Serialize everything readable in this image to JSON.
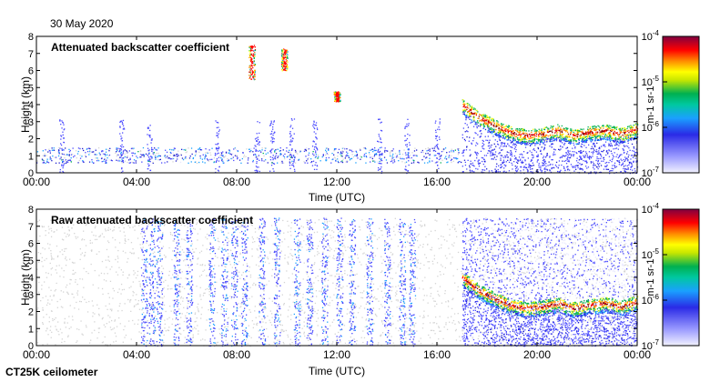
{
  "date": "30 May 2020",
  "instrument": "CT25K ceilometer",
  "colors": {
    "low_signal": "#d4d4d4",
    "scale": [
      "#e6e6ff",
      "#4a4aff",
      "#1f1fd0",
      "#1aa0ff",
      "#00b050",
      "#ffff00",
      "#ff8a00",
      "#ff0000",
      "#800000"
    ]
  },
  "chart_data": [
    {
      "type": "heatmap",
      "title": "Attenuated backscatter coefficient",
      "xlabel": "Time (UTC)",
      "ylabel": "Height (km)",
      "xlim": [
        "00:00",
        "24:00"
      ],
      "ylim": [
        0,
        8
      ],
      "x_ticks": [
        "00:00",
        "04:00",
        "08:00",
        "12:00",
        "16:00",
        "20:00",
        "00:00"
      ],
      "y_ticks": [
        "0",
        "1",
        "2",
        "3",
        "4",
        "5",
        "6",
        "7",
        "8"
      ],
      "colorbar": {
        "label": "m-1 sr-1",
        "scale": "log",
        "range": [
          1e-07,
          0.0001
        ],
        "tick_labels": [
          {
            "mantissa": "10",
            "exp": "-4"
          },
          {
            "mantissa": "10",
            "exp": "-5"
          },
          {
            "mantissa": "10",
            "exp": "-6"
          },
          {
            "mantissa": "10",
            "exp": "-7"
          }
        ]
      },
      "features": [
        {
          "kind": "cloud_layer",
          "time_start_h": 17.0,
          "time_end_h": 24.0,
          "height_km": [
            4.0,
            3.3,
            2.8,
            2.4,
            2.2,
            2.3,
            2.5,
            2.2,
            2.4,
            2.5,
            2.3,
            2.6
          ],
          "max_level": "1e-4"
        },
        {
          "kind": "cloud_patch",
          "time_h": 8.6,
          "height_km": [
            5.5,
            7.5
          ],
          "max_level": "1e-4"
        },
        {
          "kind": "cloud_patch",
          "time_h": 9.9,
          "height_km": [
            6.0,
            7.3
          ],
          "max_level": "1e-4"
        },
        {
          "kind": "cloud_patch",
          "time_h": 12.0,
          "height_km": [
            4.2,
            4.8
          ],
          "max_level": "1e-5"
        },
        {
          "kind": "boundary_layer",
          "time_start_h": 0.0,
          "time_end_h": 17.0,
          "height_km": [
            0.6,
            1.5
          ],
          "max_level": "1e-6"
        }
      ]
    },
    {
      "type": "heatmap",
      "title": "Raw attenuated backscatter coefficient",
      "xlabel": "Time (UTC)",
      "ylabel": "Height (km)",
      "xlim": [
        "00:00",
        "24:00"
      ],
      "ylim": [
        0,
        8
      ],
      "x_ticks": [
        "00:00",
        "04:00",
        "08:00",
        "12:00",
        "16:00",
        "20:00",
        "00:00"
      ],
      "y_ticks": [
        "0",
        "1",
        "2",
        "3",
        "4",
        "5",
        "6",
        "7",
        "8"
      ],
      "colorbar": {
        "label": "m-1 sr-1",
        "scale": "log",
        "range": [
          1e-07,
          0.0001
        ],
        "tick_labels": [
          {
            "mantissa": "10",
            "exp": "-4"
          },
          {
            "mantissa": "10",
            "exp": "-5"
          },
          {
            "mantissa": "10",
            "exp": "-6"
          },
          {
            "mantissa": "10",
            "exp": "-7"
          }
        ]
      },
      "features": [
        {
          "kind": "noise_background",
          "time_start_h": 0.0,
          "time_end_h": 24.0,
          "height_km": [
            0.0,
            7.5
          ],
          "level": "1e-7"
        },
        {
          "kind": "noise_band",
          "time_start_h": 17.0,
          "time_end_h": 24.0,
          "height_km": [
            0.0,
            7.5
          ],
          "level": "1e-6"
        },
        {
          "kind": "cloud_layer",
          "time_start_h": 17.0,
          "time_end_h": 24.0,
          "height_km": [
            4.0,
            3.3,
            2.8,
            2.4,
            2.2,
            2.3,
            2.5,
            2.2,
            2.4,
            2.5,
            2.3,
            2.6
          ],
          "max_level": "1e-4"
        }
      ]
    }
  ]
}
